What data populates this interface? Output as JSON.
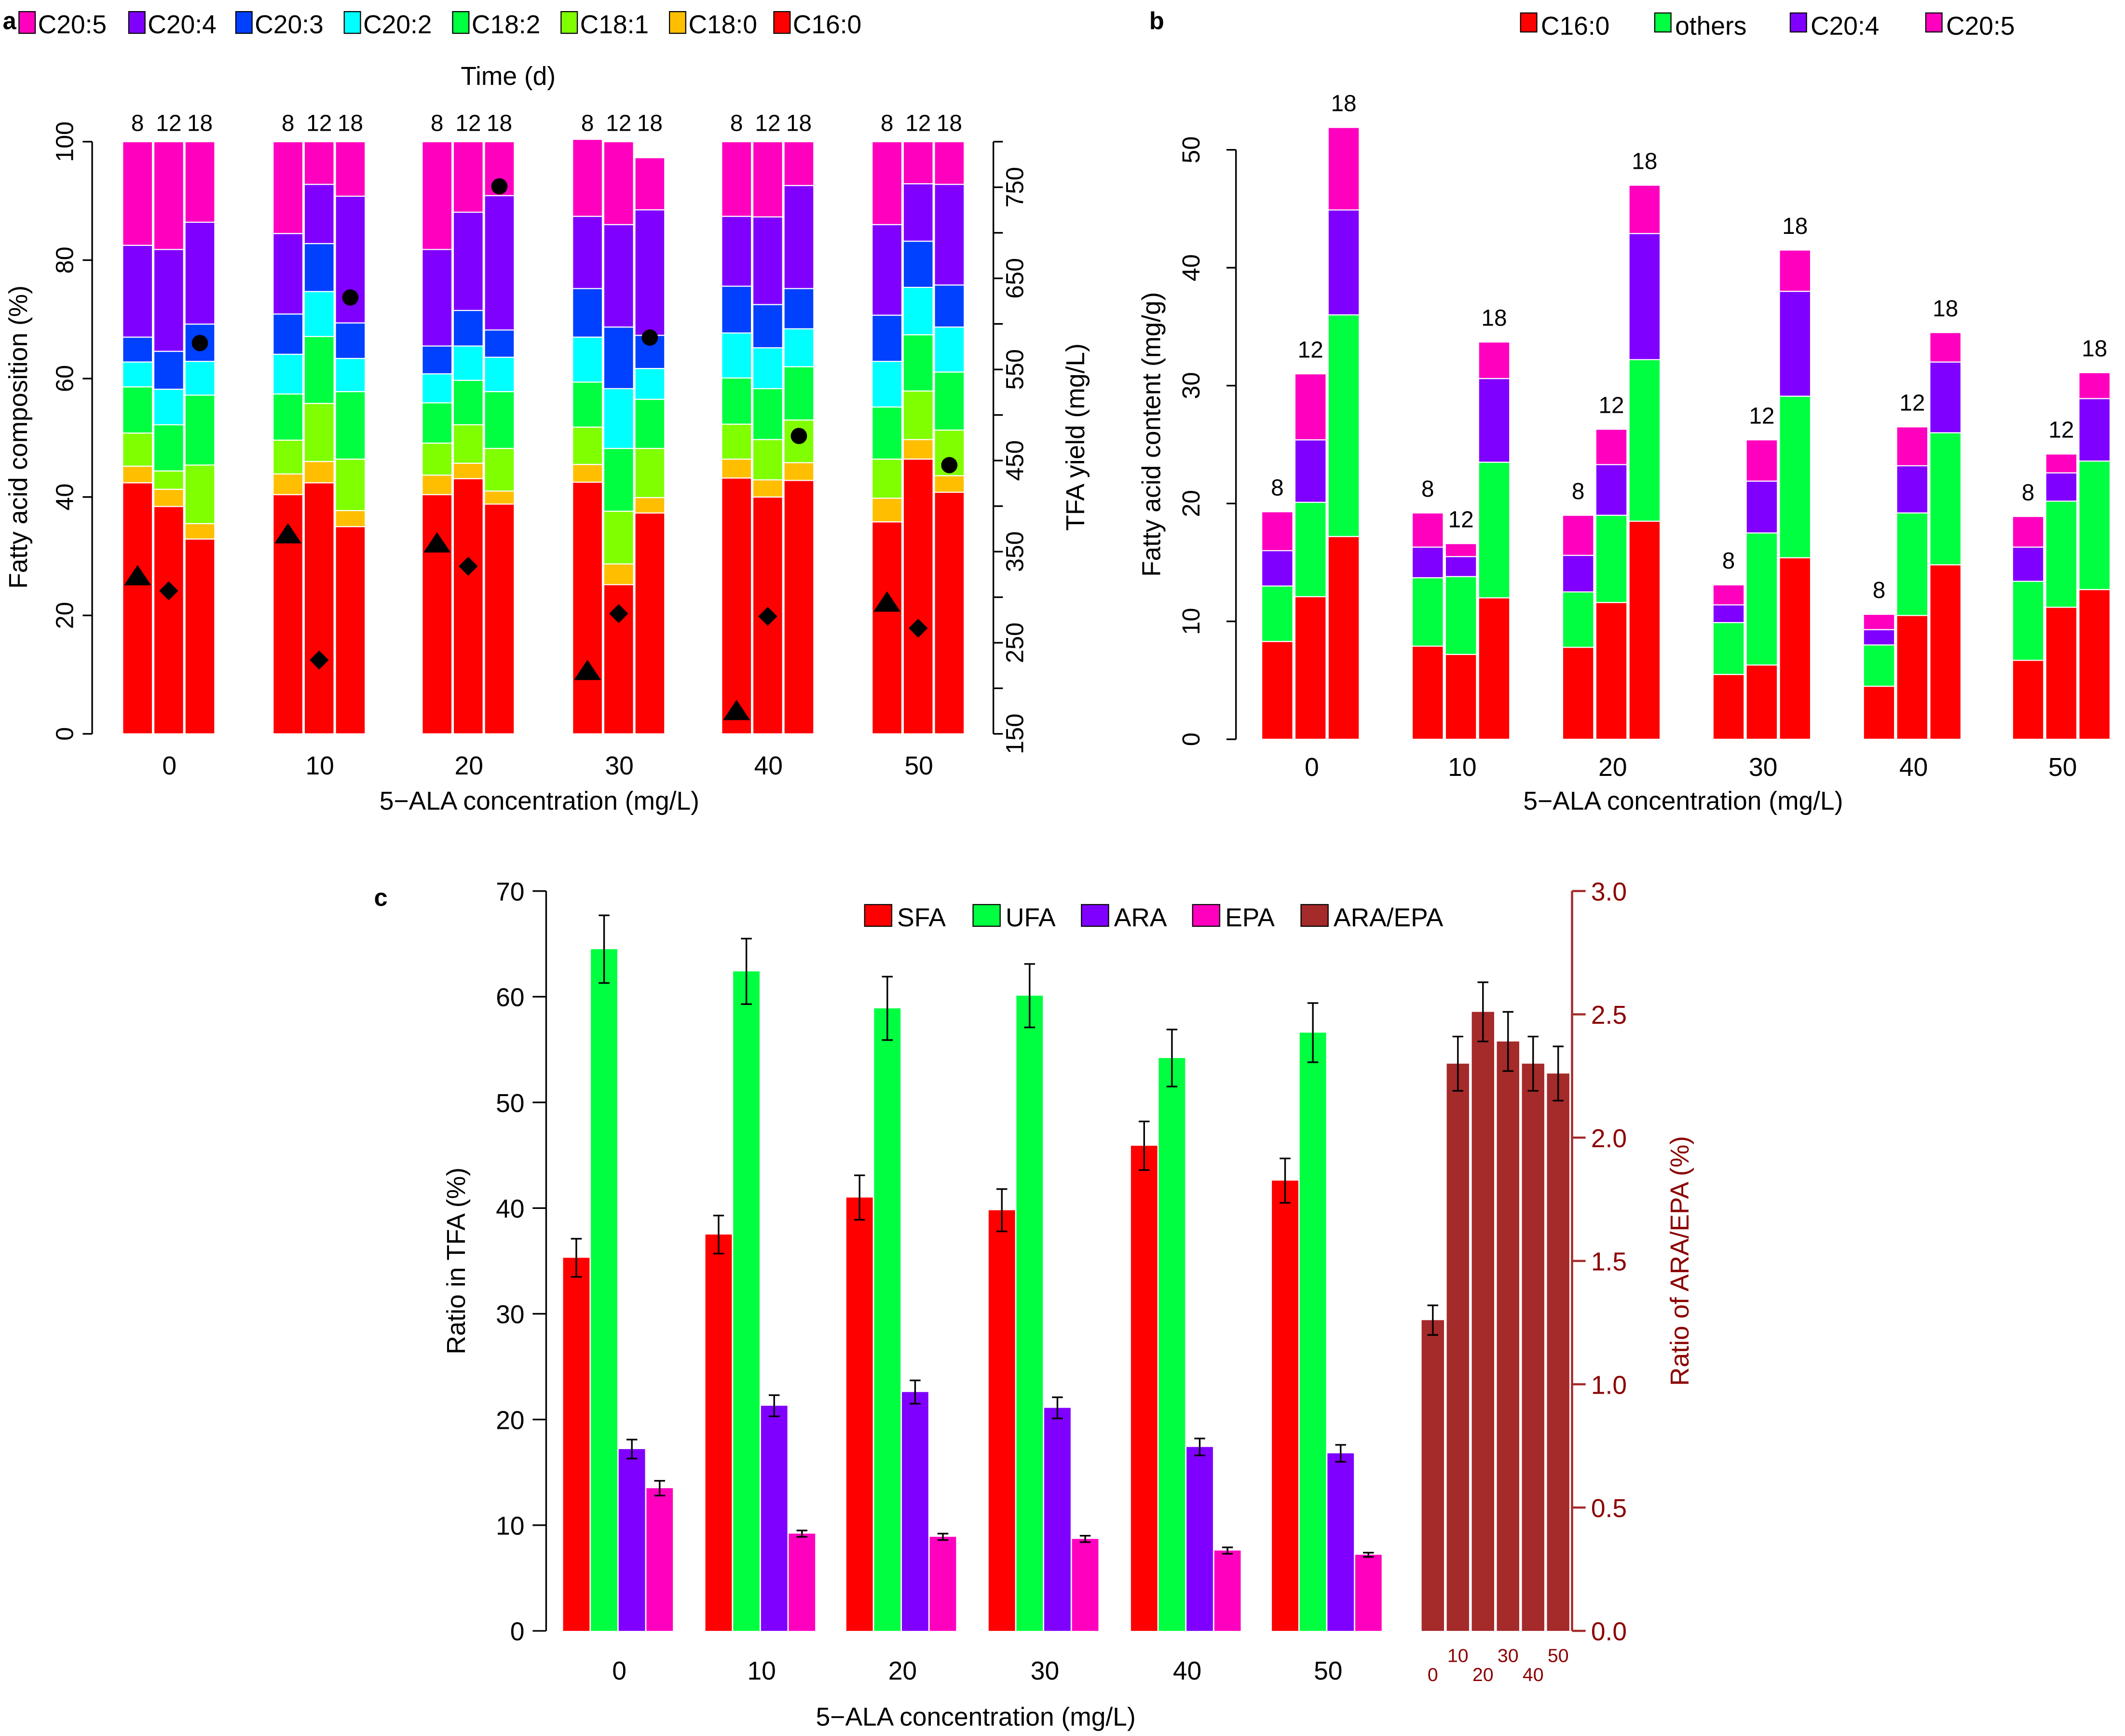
{
  "chart_data": [
    {
      "panel": "a",
      "type": "bar",
      "stacked": true,
      "title": "",
      "xlabel": "5−ALA concentration (mg/L)",
      "ylabel": "Fatty acid composition (%)",
      "y2label": "TFA yield (mg/L)",
      "top_label": "Time (d)",
      "ylim": [
        0,
        100
      ],
      "y2lim": [
        150,
        800
      ],
      "yticks": [
        "0",
        "20",
        "40",
        "60",
        "80",
        "100"
      ],
      "y2ticks": [
        "150",
        "250",
        "350",
        "450",
        "550",
        "650",
        "750"
      ],
      "categories": [
        "0",
        "10",
        "20",
        "30",
        "40",
        "50"
      ],
      "times": [
        "8",
        "12",
        "18"
      ],
      "legend": [
        "C20:5",
        "C20:4",
        "C20:3",
        "C20:2",
        "C18:2",
        "C18:1",
        "C18:0",
        "C16:0"
      ],
      "legend_position": "top",
      "colors": {
        "C16:0": "#FF0000",
        "C18:0": "#FFBF00",
        "C18:1": "#80FF00",
        "C18:2": "#00FF40",
        "C20:2": "#00FFFF",
        "C20:3": "#0040FF",
        "C20:4": "#8000FF",
        "C20:5": "#FF00BF"
      },
      "stack_order": [
        "C16:0",
        "C18:0",
        "C18:1",
        "C18:2",
        "C20:2",
        "C20:3",
        "C20:4",
        "C20:5"
      ],
      "groups": [
        {
          "concentration": "0",
          "bars": [
            {
              "time": "8",
              "values": [
                42.4,
                2.8,
                5.6,
                7.8,
                4.2,
                4.2,
                15.5,
                17.5
              ]
            },
            {
              "time": "12",
              "values": [
                38.4,
                2.9,
                3.1,
                7.8,
                6.0,
                6.4,
                17.2,
                18.2
              ]
            },
            {
              "time": "18",
              "values": [
                32.9,
                2.6,
                9.9,
                11.8,
                5.7,
                6.3,
                17.2,
                13.6
              ]
            }
          ]
        },
        {
          "concentration": "10",
          "bars": [
            {
              "time": "8",
              "values": [
                40.4,
                3.5,
                5.7,
                7.8,
                6.7,
                6.8,
                13.6,
                15.5
              ]
            },
            {
              "time": "12",
              "values": [
                42.4,
                3.6,
                9.8,
                11.3,
                7.6,
                8.1,
                10.0,
                7.2
              ]
            },
            {
              "time": "18",
              "values": [
                35.0,
                2.7,
                8.7,
                11.4,
                5.6,
                6.0,
                21.4,
                9.2
              ]
            }
          ]
        },
        {
          "concentration": "20",
          "bars": [
            {
              "time": "8",
              "values": [
                40.4,
                3.3,
                5.4,
                6.8,
                4.9,
                4.7,
                16.3,
                18.2
              ]
            },
            {
              "time": "12",
              "values": [
                43.1,
                2.6,
                6.5,
                7.5,
                5.8,
                6.0,
                16.6,
                11.9
              ]
            },
            {
              "time": "18",
              "values": [
                38.8,
                2.2,
                7.2,
                9.6,
                5.8,
                4.6,
                22.7,
                9.1
              ]
            }
          ]
        },
        {
          "concentration": "30",
          "bars": [
            {
              "time": "8",
              "values": [
                42.5,
                3.0,
                6.3,
                7.6,
                7.6,
                8.2,
                12.2,
                13.0
              ]
            },
            {
              "time": "12",
              "values": [
                25.2,
                3.5,
                8.9,
                10.6,
                10.1,
                10.4,
                17.3,
                14.0
              ]
            },
            {
              "time": "18",
              "values": [
                37.3,
                2.6,
                8.3,
                8.3,
                5.2,
                5.6,
                21.2,
                8.8
              ]
            }
          ]
        },
        {
          "concentration": "40",
          "bars": [
            {
              "time": "8",
              "values": [
                43.2,
                3.2,
                5.9,
                7.8,
                7.6,
                7.9,
                11.8,
                12.6
              ]
            },
            {
              "time": "12",
              "values": [
                40.0,
                2.9,
                6.8,
                8.6,
                6.9,
                7.3,
                14.8,
                12.7
              ]
            },
            {
              "time": "18",
              "values": [
                42.8,
                3.0,
                7.2,
                9.0,
                6.4,
                6.8,
                17.4,
                7.4
              ]
            }
          ]
        },
        {
          "concentration": "50",
          "bars": [
            {
              "time": "8",
              "values": [
                35.8,
                4.0,
                6.6,
                8.8,
                7.7,
                7.8,
                15.3,
                14.0
              ]
            },
            {
              "time": "12",
              "values": [
                46.4,
                3.3,
                8.2,
                9.5,
                8.0,
                7.8,
                9.7,
                7.1
              ]
            },
            {
              "time": "18",
              "values": [
                40.8,
                2.8,
                7.7,
                9.8,
                7.6,
                7.1,
                17.0,
                7.2
              ]
            }
          ]
        }
      ],
      "tfa_yield": {
        "markers": {
          "8": "triangle",
          "12": "diamond",
          "18": "circle"
        },
        "values": {
          "0": [
            322,
            307,
            579
          ],
          "10": [
            368,
            231,
            629
          ],
          "20": [
            358,
            334,
            751
          ],
          "30": [
            218,
            282,
            585
          ],
          "40": [
            174,
            279,
            477
          ],
          "50": [
            293,
            266,
            445
          ]
        }
      }
    },
    {
      "panel": "b",
      "type": "bar",
      "stacked": true,
      "title": "",
      "xlabel": "5−ALA concentration (mg/L)",
      "ylabel": "Fatty acid content (mg/g)",
      "ylim": [
        0,
        50
      ],
      "yticks": [
        "0",
        "10",
        "20",
        "30",
        "40",
        "50"
      ],
      "categories": [
        "0",
        "10",
        "20",
        "30",
        "40",
        "50"
      ],
      "times": [
        "8",
        "12",
        "18"
      ],
      "legend": [
        "C16:0",
        "others",
        "C20:4",
        "C20:5"
      ],
      "legend_position": "top-right",
      "colors": {
        "C16:0": "#FF0000",
        "others": "#00FF40",
        "C20:4": "#8000FF",
        "C20:5": "#FF00BF"
      },
      "stack_order": [
        "C16:0",
        "others",
        "C20:4",
        "C20:5"
      ],
      "groups": [
        {
          "concentration": "0",
          "bars": [
            {
              "time": "8",
              "values": [
                8.3,
                4.7,
                3.0,
                3.3
              ]
            },
            {
              "time": "12",
              "values": [
                12.1,
                8.0,
                5.3,
                5.6
              ]
            },
            {
              "time": "18",
              "values": [
                17.2,
                18.8,
                8.9,
                7.0
              ]
            }
          ]
        },
        {
          "concentration": "10",
          "bars": [
            {
              "time": "8",
              "values": [
                7.9,
                5.8,
                2.6,
                2.9
              ]
            },
            {
              "time": "12",
              "values": [
                7.2,
                6.6,
                1.7,
                1.1
              ]
            },
            {
              "time": "18",
              "values": [
                12.0,
                11.5,
                7.1,
                3.1
              ]
            }
          ]
        },
        {
          "concentration": "20",
          "bars": [
            {
              "time": "8",
              "values": [
                7.8,
                4.7,
                3.1,
                3.4
              ]
            },
            {
              "time": "12",
              "values": [
                11.6,
                7.4,
                4.3,
                3.0
              ]
            },
            {
              "time": "18",
              "values": [
                18.5,
                13.7,
                10.7,
                4.1
              ]
            }
          ]
        },
        {
          "concentration": "30",
          "bars": [
            {
              "time": "8",
              "values": [
                5.5,
                4.4,
                1.5,
                1.7
              ]
            },
            {
              "time": "12",
              "values": [
                6.3,
                11.2,
                4.4,
                3.5
              ]
            },
            {
              "time": "18",
              "values": [
                15.4,
                13.7,
                8.9,
                3.5
              ]
            }
          ]
        },
        {
          "concentration": "40",
          "bars": [
            {
              "time": "8",
              "values": [
                4.5,
                3.5,
                1.3,
                1.3
              ]
            },
            {
              "time": "12",
              "values": [
                10.5,
                8.7,
                4.0,
                3.3
              ]
            },
            {
              "time": "18",
              "values": [
                14.8,
                11.2,
                6.0,
                2.5
              ]
            }
          ]
        },
        {
          "concentration": "50",
          "bars": [
            {
              "time": "8",
              "values": [
                6.7,
                6.7,
                2.9,
                2.6
              ]
            },
            {
              "time": "12",
              "values": [
                11.2,
                9.0,
                2.4,
                1.6
              ]
            },
            {
              "time": "18",
              "values": [
                12.7,
                10.9,
                5.3,
                2.2
              ]
            }
          ]
        }
      ]
    },
    {
      "panel": "c",
      "type": "bar",
      "stacked": false,
      "title": "",
      "xlabel": "5−ALA concentration (mg/L)",
      "ylabel": "Ratio in TFA (%)",
      "y2label": "Ratio of ARA/EPA (%)",
      "ylim": [
        0,
        70
      ],
      "y2lim": [
        0,
        3.0
      ],
      "yticks": [
        "0",
        "10",
        "20",
        "30",
        "40",
        "50",
        "60",
        "70"
      ],
      "y2ticks": [
        "0.0",
        "0.5",
        "1.0",
        "1.5",
        "2.0",
        "2.5",
        "3.0"
      ],
      "categories": [
        "0",
        "10",
        "20",
        "30",
        "40",
        "50"
      ],
      "legend": [
        "SFA",
        "UFA",
        "ARA",
        "EPA",
        "ARA/EPA"
      ],
      "legend_position": "top",
      "colors": {
        "SFA": "#FF0000",
        "UFA": "#00FF40",
        "ARA": "#8000FF",
        "EPA": "#FF00BF",
        "ARA/EPA": "#A52A2A",
        "y2_axis": "#8B0000"
      },
      "series": [
        {
          "name": "SFA",
          "values": [
            35.3,
            37.5,
            41.0,
            39.8,
            45.9,
            42.6
          ],
          "errors": [
            1.8,
            1.8,
            2.1,
            2.0,
            2.3,
            2.1
          ]
        },
        {
          "name": "UFA",
          "values": [
            64.5,
            62.4,
            58.9,
            60.1,
            54.2,
            56.6
          ],
          "errors": [
            3.2,
            3.1,
            3.0,
            3.0,
            2.7,
            2.8
          ]
        },
        {
          "name": "ARA",
          "values": [
            17.2,
            21.3,
            22.6,
            21.1,
            17.4,
            16.8
          ],
          "errors": [
            0.9,
            1.0,
            1.1,
            1.0,
            0.8,
            0.8
          ]
        },
        {
          "name": "EPA",
          "values": [
            13.5,
            9.2,
            8.9,
            8.7,
            7.6,
            7.2
          ],
          "errors": [
            0.7,
            0.3,
            0.3,
            0.3,
            0.3,
            0.2
          ]
        }
      ],
      "ratio_series": {
        "name": "ARA/EPA",
        "categories": [
          "0",
          "10",
          "20",
          "30",
          "40",
          "50"
        ],
        "values": [
          1.26,
          2.3,
          2.51,
          2.39,
          2.3,
          2.26
        ],
        "errors": [
          0.06,
          0.11,
          0.12,
          0.12,
          0.11,
          0.11
        ]
      }
    }
  ],
  "panel_letters": {
    "a": "a",
    "b": "b",
    "c": "c"
  }
}
